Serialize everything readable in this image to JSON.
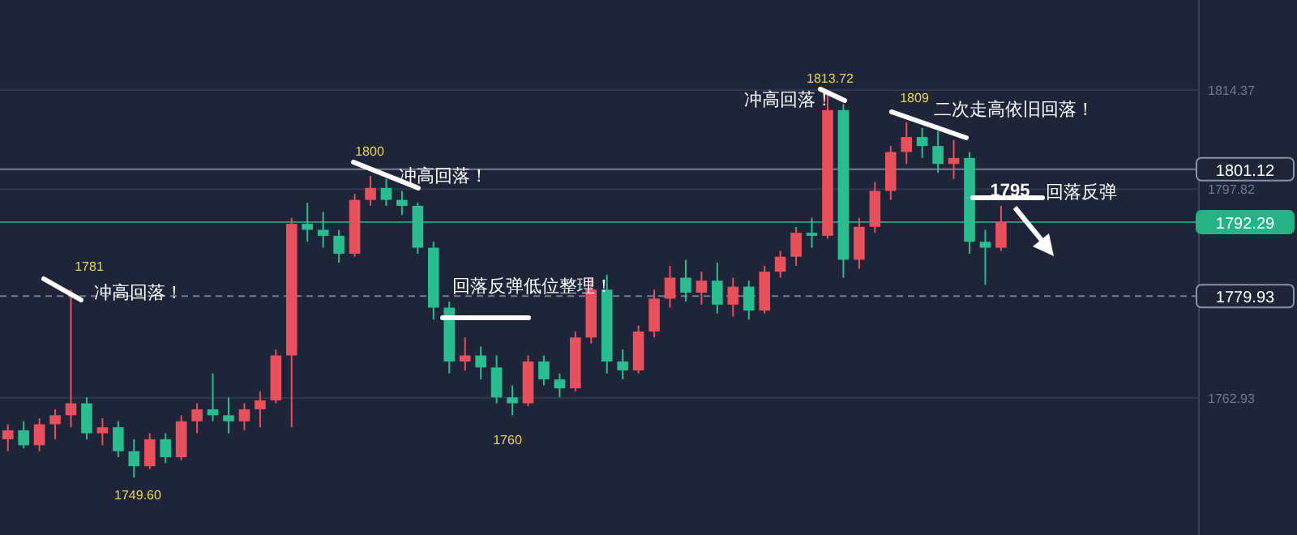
{
  "chart_data": {
    "type": "candlestick",
    "categories": [
      null,
      null,
      null,
      null,
      null,
      null,
      null,
      null,
      null,
      null,
      null,
      null,
      null,
      null,
      null,
      null,
      null,
      null,
      null,
      null,
      null,
      null,
      null,
      null,
      null,
      null,
      null,
      null,
      null,
      null,
      null,
      null,
      null,
      null,
      null,
      null,
      null,
      null,
      null,
      null,
      null,
      null,
      null,
      null,
      null,
      null,
      null,
      null,
      null,
      null,
      null,
      null,
      null,
      null,
      null,
      null,
      null,
      null,
      null,
      null,
      null,
      null,
      null,
      null,
      null,
      null,
      null,
      null,
      null,
      null,
      null,
      null,
      null,
      null,
      null,
      null
    ],
    "ohlc": [
      [
        1756,
        1758.5,
        1754,
        1757.5
      ],
      [
        1757.5,
        1759,
        1754.5,
        1755
      ],
      [
        1755,
        1759.5,
        1754,
        1758.5
      ],
      [
        1758.5,
        1761,
        1756,
        1760
      ],
      [
        1760,
        1781,
        1758,
        1762
      ],
      [
        1762,
        1763,
        1756,
        1757
      ],
      [
        1757,
        1759.5,
        1755,
        1758
      ],
      [
        1758,
        1759,
        1753,
        1754
      ],
      [
        1754,
        1756,
        1749.6,
        1751.5
      ],
      [
        1751.5,
        1757,
        1751,
        1756
      ],
      [
        1756,
        1757,
        1752,
        1753
      ],
      [
        1753,
        1760,
        1752.5,
        1759
      ],
      [
        1759,
        1762,
        1757,
        1761
      ],
      [
        1761,
        1767,
        1759,
        1760
      ],
      [
        1760,
        1763,
        1757,
        1759
      ],
      [
        1759,
        1762,
        1757.5,
        1761
      ],
      [
        1761,
        1764,
        1758,
        1762.5
      ],
      [
        1762.5,
        1771,
        1762,
        1770
      ],
      [
        1770,
        1793,
        1758,
        1792
      ],
      [
        1792,
        1795.5,
        1789,
        1791
      ],
      [
        1791,
        1794,
        1788,
        1790
      ],
      [
        1790,
        1791,
        1785.5,
        1787
      ],
      [
        1787,
        1797,
        1786.5,
        1796
      ],
      [
        1796,
        1800,
        1795,
        1798
      ],
      [
        1798,
        1799.5,
        1795,
        1796
      ],
      [
        1796,
        1797.5,
        1793.5,
        1795
      ],
      [
        1795,
        1795.5,
        1787,
        1788
      ],
      [
        1788,
        1789,
        1776,
        1778
      ],
      [
        1778,
        1779,
        1767,
        1769
      ],
      [
        1769,
        1773,
        1767.5,
        1770
      ],
      [
        1770,
        1771.5,
        1766,
        1768
      ],
      [
        1768,
        1770,
        1762,
        1763
      ],
      [
        1763,
        1765,
        1760,
        1762
      ],
      [
        1762,
        1770,
        1761.5,
        1769
      ],
      [
        1769,
        1770,
        1765,
        1766
      ],
      [
        1766,
        1767,
        1763,
        1764.5
      ],
      [
        1764.5,
        1774,
        1764,
        1773
      ],
      [
        1773,
        1783,
        1772,
        1781
      ],
      [
        1781,
        1783.5,
        1767,
        1769
      ],
      [
        1769,
        1771,
        1766,
        1767.5
      ],
      [
        1767.5,
        1775,
        1767,
        1774
      ],
      [
        1774,
        1781,
        1773,
        1779.5
      ],
      [
        1779.5,
        1785,
        1778,
        1783
      ],
      [
        1783,
        1786,
        1779,
        1780.5
      ],
      [
        1780.5,
        1784,
        1778.5,
        1782.5
      ],
      [
        1782.5,
        1785.5,
        1777,
        1778.5
      ],
      [
        1778.5,
        1783,
        1776.5,
        1781.5
      ],
      [
        1781.5,
        1782.5,
        1776,
        1777.5
      ],
      [
        1777.5,
        1785,
        1777,
        1784
      ],
      [
        1784,
        1787.5,
        1783,
        1786.5
      ],
      [
        1786.5,
        1791.5,
        1785,
        1790.5
      ],
      [
        1790.5,
        1793,
        1788,
        1790
      ],
      [
        1790,
        1813.72,
        1789.5,
        1811
      ],
      [
        1811,
        1812,
        1783,
        1786
      ],
      [
        1786,
        1793,
        1784.5,
        1791.5
      ],
      [
        1791.5,
        1799,
        1790.5,
        1797.5
      ],
      [
        1797.5,
        1805,
        1796,
        1804
      ],
      [
        1804,
        1809,
        1802,
        1806.5
      ],
      [
        1806.5,
        1808,
        1803,
        1805
      ],
      [
        1805,
        1807.5,
        1800.5,
        1802
      ],
      [
        1802,
        1806,
        1799.5,
        1803
      ],
      [
        1803,
        1804,
        1787,
        1789
      ],
      [
        1789,
        1791,
        1781.8,
        1788
      ],
      [
        1788,
        1795,
        1787.5,
        1792.29
      ],
      null,
      null,
      null,
      null,
      null,
      null,
      null,
      null,
      null,
      null,
      null,
      null
    ],
    "ylim": [
      1740,
      1829.4
    ],
    "yticks": [
      1762.93,
      1797.82,
      1814.37
    ],
    "tick_labels": "y",
    "grid": "y",
    "ref_lines": [
      {
        "axis": "y",
        "value": 1801.12,
        "label": "1801.12",
        "color": "#8a93a6",
        "line_style": "solid"
      },
      {
        "axis": "y",
        "value": 1779.93,
        "label": "1779.93",
        "color": "#8a93a6",
        "line_style": "dashed"
      },
      {
        "axis": "y",
        "value": 1792.29,
        "label": "1792.29",
        "color": "#26b383",
        "line_style": "solid"
      }
    ],
    "annotations": [
      "1781",
      "1800",
      "1760",
      "1749.60",
      "1813.72",
      "1809",
      "1795",
      "冲高回落！",
      "冲高回落！",
      "回落反弹低位整理！",
      "冲高回落！",
      "二次走高依旧回落！",
      "回落反弹"
    ]
  }
}
